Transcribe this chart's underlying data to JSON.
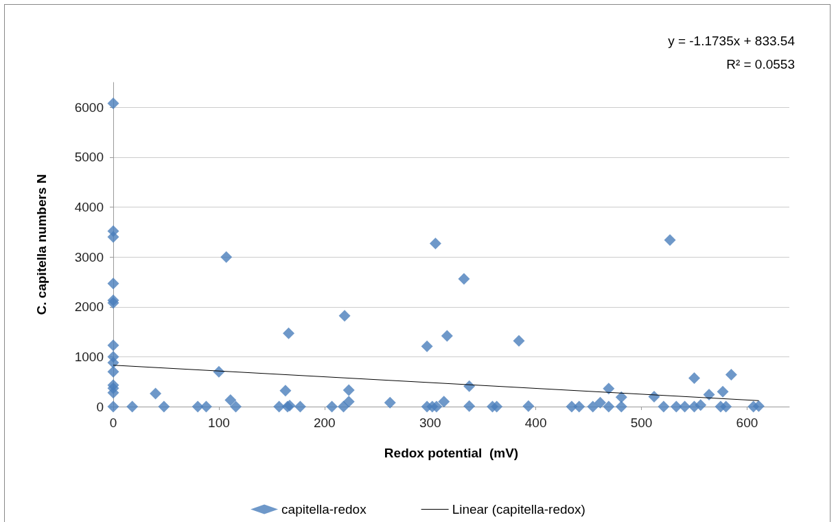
{
  "chart_data": {
    "type": "scatter",
    "xlabel": "Redox potential  (mV)",
    "ylabel": "C. capitella numbers N",
    "annotations": [
      "y = -1.1735x + 833.54",
      "R² = 0.0553"
    ],
    "xlim": [
      0,
      640
    ],
    "xticks": [
      0,
      100,
      200,
      300,
      400,
      500,
      600
    ],
    "ylim": [
      0,
      6500
    ],
    "yticks": [
      0,
      1000,
      2000,
      3000,
      4000,
      5000,
      6000
    ],
    "grid": "y",
    "legend": "bottom",
    "marker": "diamond",
    "series": [
      {
        "name": "capitella-redox",
        "color": "#4a7ebb",
        "x": [
          0,
          0,
          0,
          0,
          0,
          0,
          0,
          0,
          0,
          0,
          0,
          0,
          0,
          0,
          18,
          40,
          48,
          80,
          88,
          100,
          107,
          111,
          116,
          157,
          163,
          165,
          167,
          166,
          177,
          207,
          218,
          219,
          223,
          223,
          262,
          297,
          297,
          302,
          305,
          306,
          313,
          316,
          332,
          337,
          337,
          359,
          363,
          384,
          393,
          434,
          441,
          454,
          461,
          469,
          469,
          481,
          481,
          512,
          521,
          527,
          533,
          541,
          550,
          550,
          556,
          564,
          575,
          577,
          580,
          585,
          606,
          611
        ],
        "values": [
          6080,
          3520,
          3400,
          2470,
          2130,
          2080,
          1230,
          1000,
          880,
          700,
          430,
          370,
          280,
          0,
          0,
          260,
          0,
          0,
          0,
          700,
          3000,
          130,
          0,
          0,
          320,
          0,
          20,
          1470,
          0,
          0,
          0,
          1820,
          100,
          330,
          80,
          1210,
          0,
          0,
          3270,
          0,
          100,
          1420,
          2560,
          410,
          10,
          0,
          0,
          1320,
          10,
          0,
          0,
          0,
          80,
          360,
          0,
          190,
          0,
          200,
          0,
          3340,
          0,
          0,
          570,
          0,
          30,
          240,
          0,
          300,
          0,
          640,
          0,
          10
        ]
      },
      {
        "name": "Linear (capitella-redox)",
        "type": "line",
        "color": "#000000",
        "marker": "none",
        "x": [
          0,
          611
        ],
        "values": [
          830,
          120
        ]
      }
    ]
  }
}
